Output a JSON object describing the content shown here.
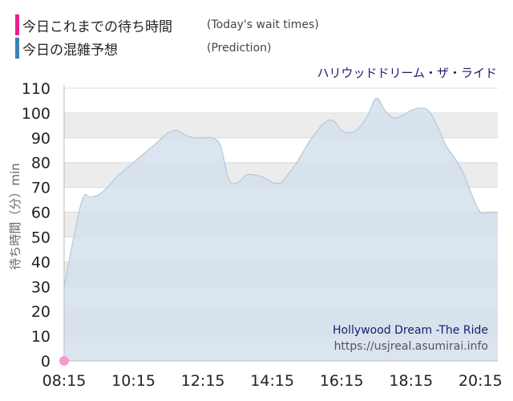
{
  "legend": [
    {
      "label": "今日これまでの待ち時間",
      "sub": "(Today's wait times)",
      "color": "#ec1e8c"
    },
    {
      "label": "今日の混雑予想",
      "sub": "(Prediction)",
      "color": "#3d7fb3"
    }
  ],
  "ride_name_jp": "ハリウッドドリーム・ザ・ライド",
  "ride_name_en": "Hollywood Dream -The Ride",
  "source": "https://usjreal.asumirai.info",
  "colors": {
    "prediction_fill": "#d5e1ec",
    "prediction_line": "#b3c8da",
    "actual_point": "#f59ad0",
    "band": "#ececec"
  },
  "chart_data": {
    "type": "area",
    "ylabel": "待ち時間（分）min",
    "ylim": [
      0,
      110
    ],
    "yticks": [
      "0",
      "10",
      "20",
      "30",
      "40",
      "50",
      "60",
      "70",
      "80",
      "90",
      "100",
      "110"
    ],
    "xlim": [
      "08:15",
      "20:45"
    ],
    "xticks": [
      "08:15",
      "10:15",
      "12:15",
      "14:15",
      "16:15",
      "18:15",
      "20:15"
    ],
    "grid": true,
    "series": [
      {
        "type": "area",
        "x": [
          "08:15",
          "08:45",
          "09:00",
          "09:15",
          "09:30",
          "09:45",
          "10:00",
          "10:15",
          "10:30",
          "10:45",
          "11:00",
          "11:15",
          "11:30",
          "11:45",
          "12:00",
          "12:15",
          "12:30",
          "12:45",
          "13:00",
          "13:15",
          "13:30",
          "13:45",
          "14:00",
          "14:15",
          "14:30",
          "14:45",
          "15:00",
          "15:15",
          "15:30",
          "15:45",
          "16:00",
          "16:15",
          "16:30",
          "16:45",
          "17:00",
          "17:15",
          "17:30",
          "17:45",
          "18:00",
          "18:15",
          "18:30",
          "18:45",
          "19:00",
          "19:15",
          "19:30",
          "19:45",
          "20:00",
          "20:15",
          "20:30",
          "20:45"
        ],
        "values": [
          30,
          64,
          66,
          67,
          70,
          74,
          77,
          80,
          83,
          86,
          89,
          92,
          93,
          91,
          90,
          90,
          90,
          87,
          73,
          72,
          75,
          75,
          74,
          72,
          72,
          76,
          81,
          87,
          92,
          96,
          97,
          93,
          92,
          94,
          99,
          106,
          101,
          98,
          99,
          101,
          102,
          101,
          95,
          87,
          82,
          76,
          67,
          60,
          60,
          60
        ]
      },
      {
        "type": "point",
        "x": [
          "08:15"
        ],
        "values": [
          0
        ]
      }
    ]
  }
}
